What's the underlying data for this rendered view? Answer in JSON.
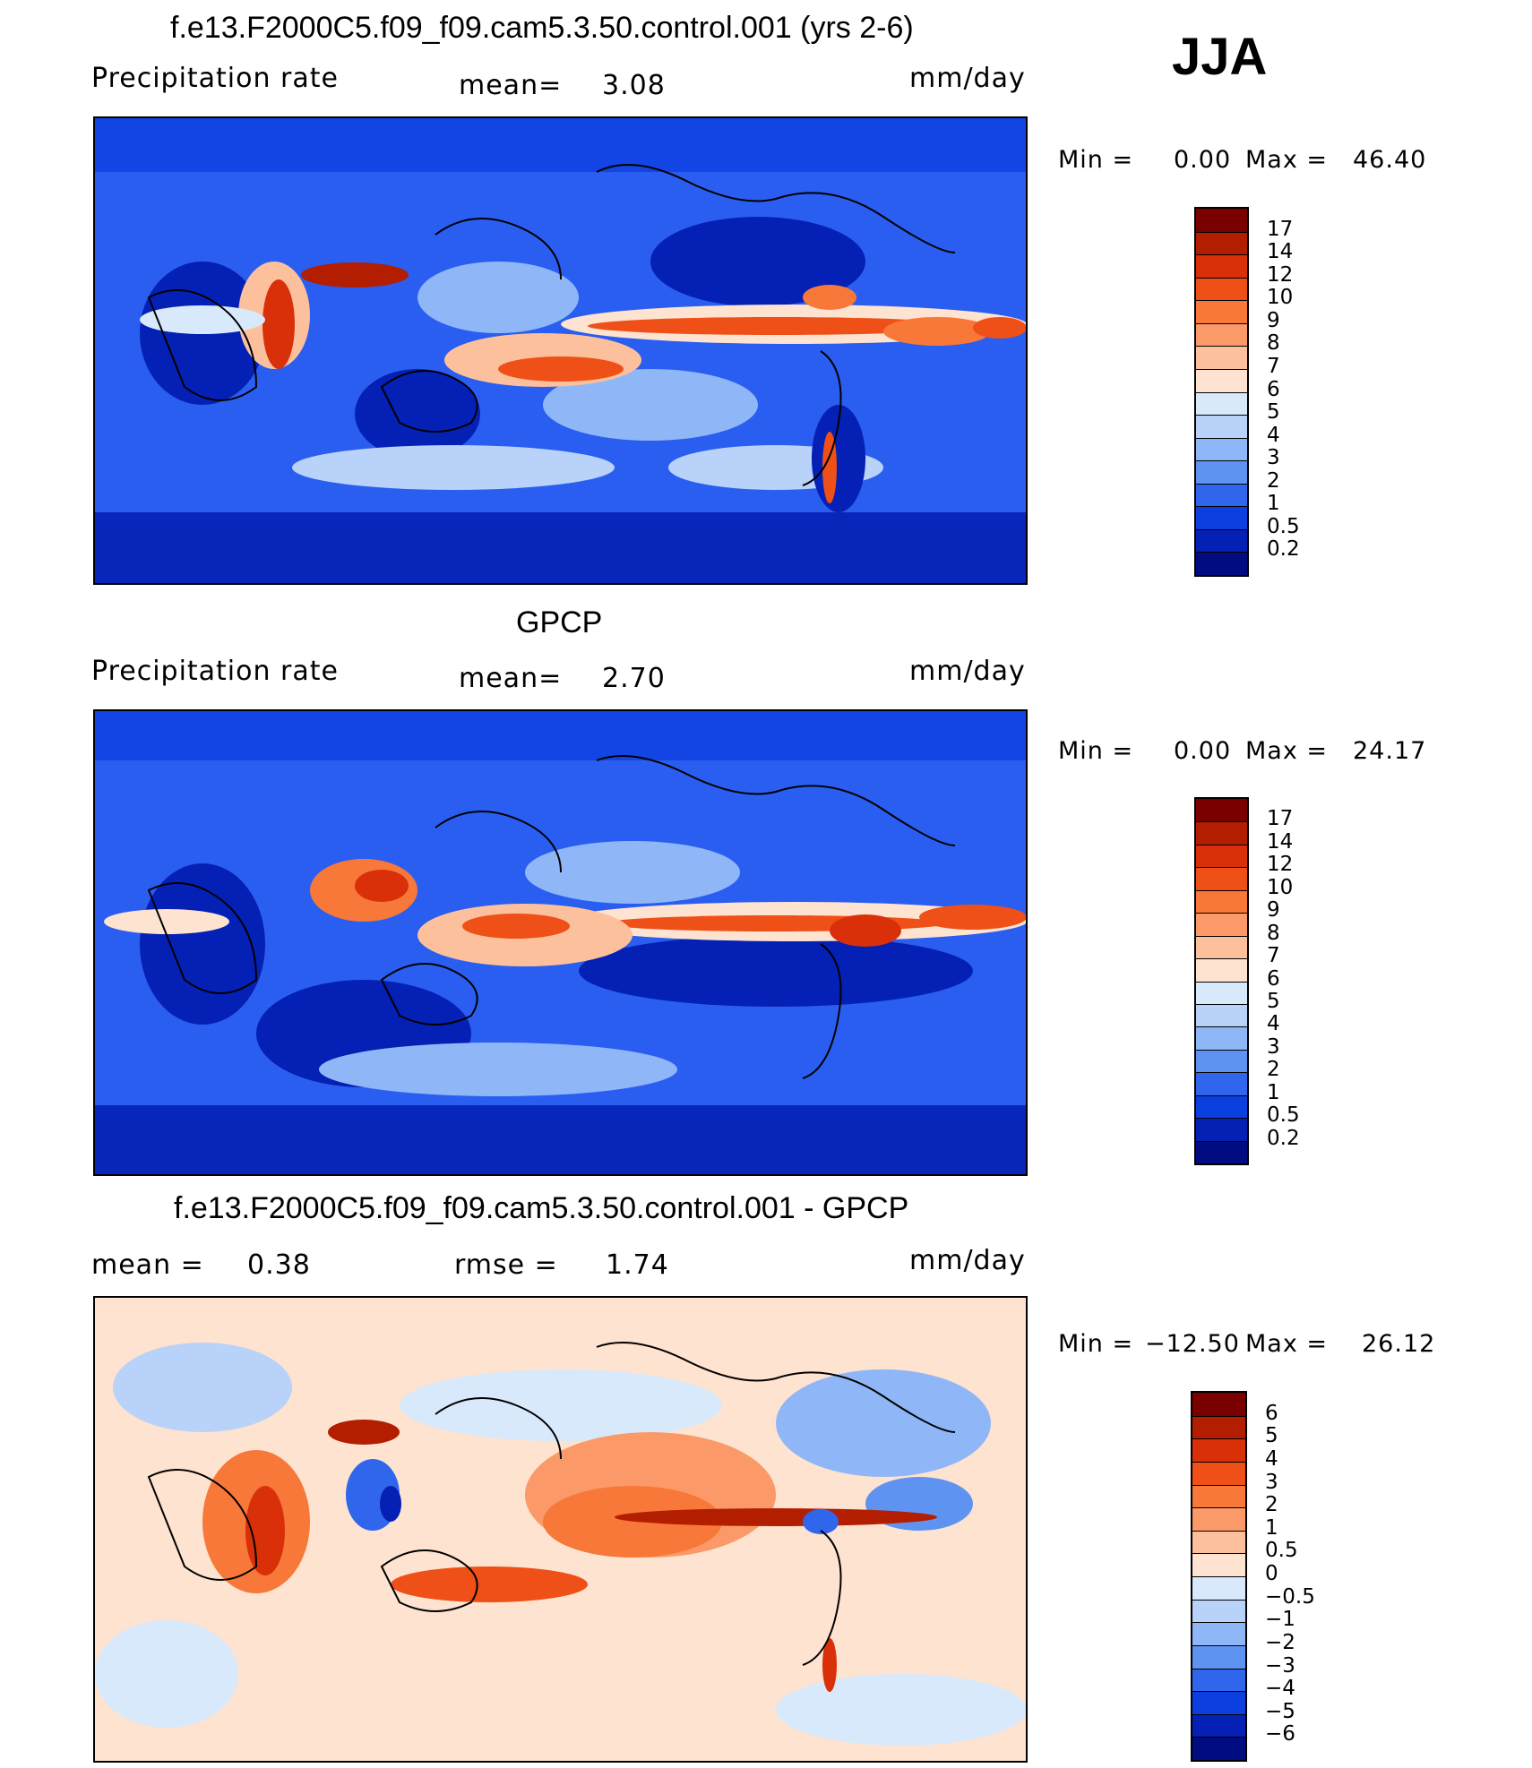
{
  "season": "JJA",
  "panels": [
    {
      "title": "f.e13.F2000C5.f09_f09.cam5.3.50.control.001 (yrs 2-6)",
      "left_label": "Precipitation  rate",
      "mid_label": "mean=",
      "mid_value": "3.08",
      "units": "mm/day",
      "min_label": "Min  =",
      "min_value": "0.00",
      "max_label": "Max  =",
      "max_value": "46.40",
      "colorbar": {
        "labels": [
          "17",
          "14",
          "12",
          "10",
          "9",
          "8",
          "7",
          "6",
          "5",
          "4",
          "3",
          "2",
          "1",
          "0.5",
          "0.2"
        ],
        "colors": [
          "#7a0000",
          "#b31d00",
          "#d9300a",
          "#ee5018",
          "#f77838",
          "#fb9a68",
          "#fdc09c",
          "#fde3d0",
          "#d8e9fb",
          "#b8d2fa",
          "#8fb7f7",
          "#5f93f2",
          "#2f66ec",
          "#0c3fe0",
          "#0520b4",
          "#000c80"
        ]
      }
    },
    {
      "title": "GPCP",
      "left_label": "Precipitation  rate",
      "mid_label": "mean=",
      "mid_value": "2.70",
      "units": "mm/day",
      "min_label": "Min  =",
      "min_value": "0.00",
      "max_label": "Max  =",
      "max_value": "24.17",
      "colorbar": {
        "labels": [
          "17",
          "14",
          "12",
          "10",
          "9",
          "8",
          "7",
          "6",
          "5",
          "4",
          "3",
          "2",
          "1",
          "0.5",
          "0.2"
        ],
        "colors": [
          "#7a0000",
          "#b31d00",
          "#d9300a",
          "#ee5018",
          "#f77838",
          "#fb9a68",
          "#fdc09c",
          "#fde3d0",
          "#d8e9fb",
          "#b8d2fa",
          "#8fb7f7",
          "#5f93f2",
          "#2f66ec",
          "#0c3fe0",
          "#0520b4",
          "#000c80"
        ]
      }
    },
    {
      "title": "f.e13.F2000C5.f09_f09.cam5.3.50.control.001 - GPCP",
      "left_label": "mean  =",
      "left_value": "0.38",
      "mid_label": "rmse  =",
      "mid_value": "1.74",
      "units": "mm/day",
      "min_label": "Min  =",
      "min_value": "−12.50",
      "max_label": "Max  =",
      "max_value": "26.12",
      "colorbar": {
        "labels": [
          "6",
          "5",
          "4",
          "3",
          "2",
          "1",
          "0.5",
          "0",
          "−0.5",
          "−1",
          "−2",
          "−3",
          "−4",
          "−5",
          "−6"
        ],
        "colors": [
          "#7a0000",
          "#b31d00",
          "#d9300a",
          "#ee5018",
          "#f77838",
          "#fb9a68",
          "#fdc09c",
          "#fde3d0",
          "#d8e9fb",
          "#b8d2fa",
          "#8fb7f7",
          "#5f93f2",
          "#2f66ec",
          "#0c3fe0",
          "#0520b4",
          "#000c80"
        ]
      }
    }
  ],
  "chart_data": [
    {
      "type": "heatmap",
      "title": "f.e13.F2000C5.f09_f09.cam5.3.50.control.001 (yrs 2-6)",
      "variable": "Precipitation  rate",
      "units": "mm/day",
      "mean": 3.08,
      "min": 0.0,
      "max": 46.4,
      "levels": [
        0.2,
        0.5,
        1,
        2,
        3,
        4,
        5,
        6,
        7,
        8,
        9,
        10,
        12,
        14,
        17
      ],
      "map_background": "#2a5ef0"
    },
    {
      "type": "heatmap",
      "title": "GPCP",
      "variable": "Precipitation  rate",
      "units": "mm/day",
      "mean": 2.7,
      "min": 0.0,
      "max": 24.17,
      "levels": [
        0.2,
        0.5,
        1,
        2,
        3,
        4,
        5,
        6,
        7,
        8,
        9,
        10,
        12,
        14,
        17
      ],
      "map_background": "#2a5ef0"
    },
    {
      "type": "heatmap",
      "title": "f.e13.F2000C5.f09_f09.cam5.3.50.control.001 - GPCP",
      "units": "mm/day",
      "mean": 0.38,
      "rmse": 1.74,
      "min": -12.5,
      "max": 26.12,
      "levels": [
        -6,
        -5,
        -4,
        -3,
        -2,
        -1,
        -0.5,
        0,
        0.5,
        1,
        2,
        3,
        4,
        5,
        6
      ],
      "map_background": "#fde3d0"
    }
  ]
}
